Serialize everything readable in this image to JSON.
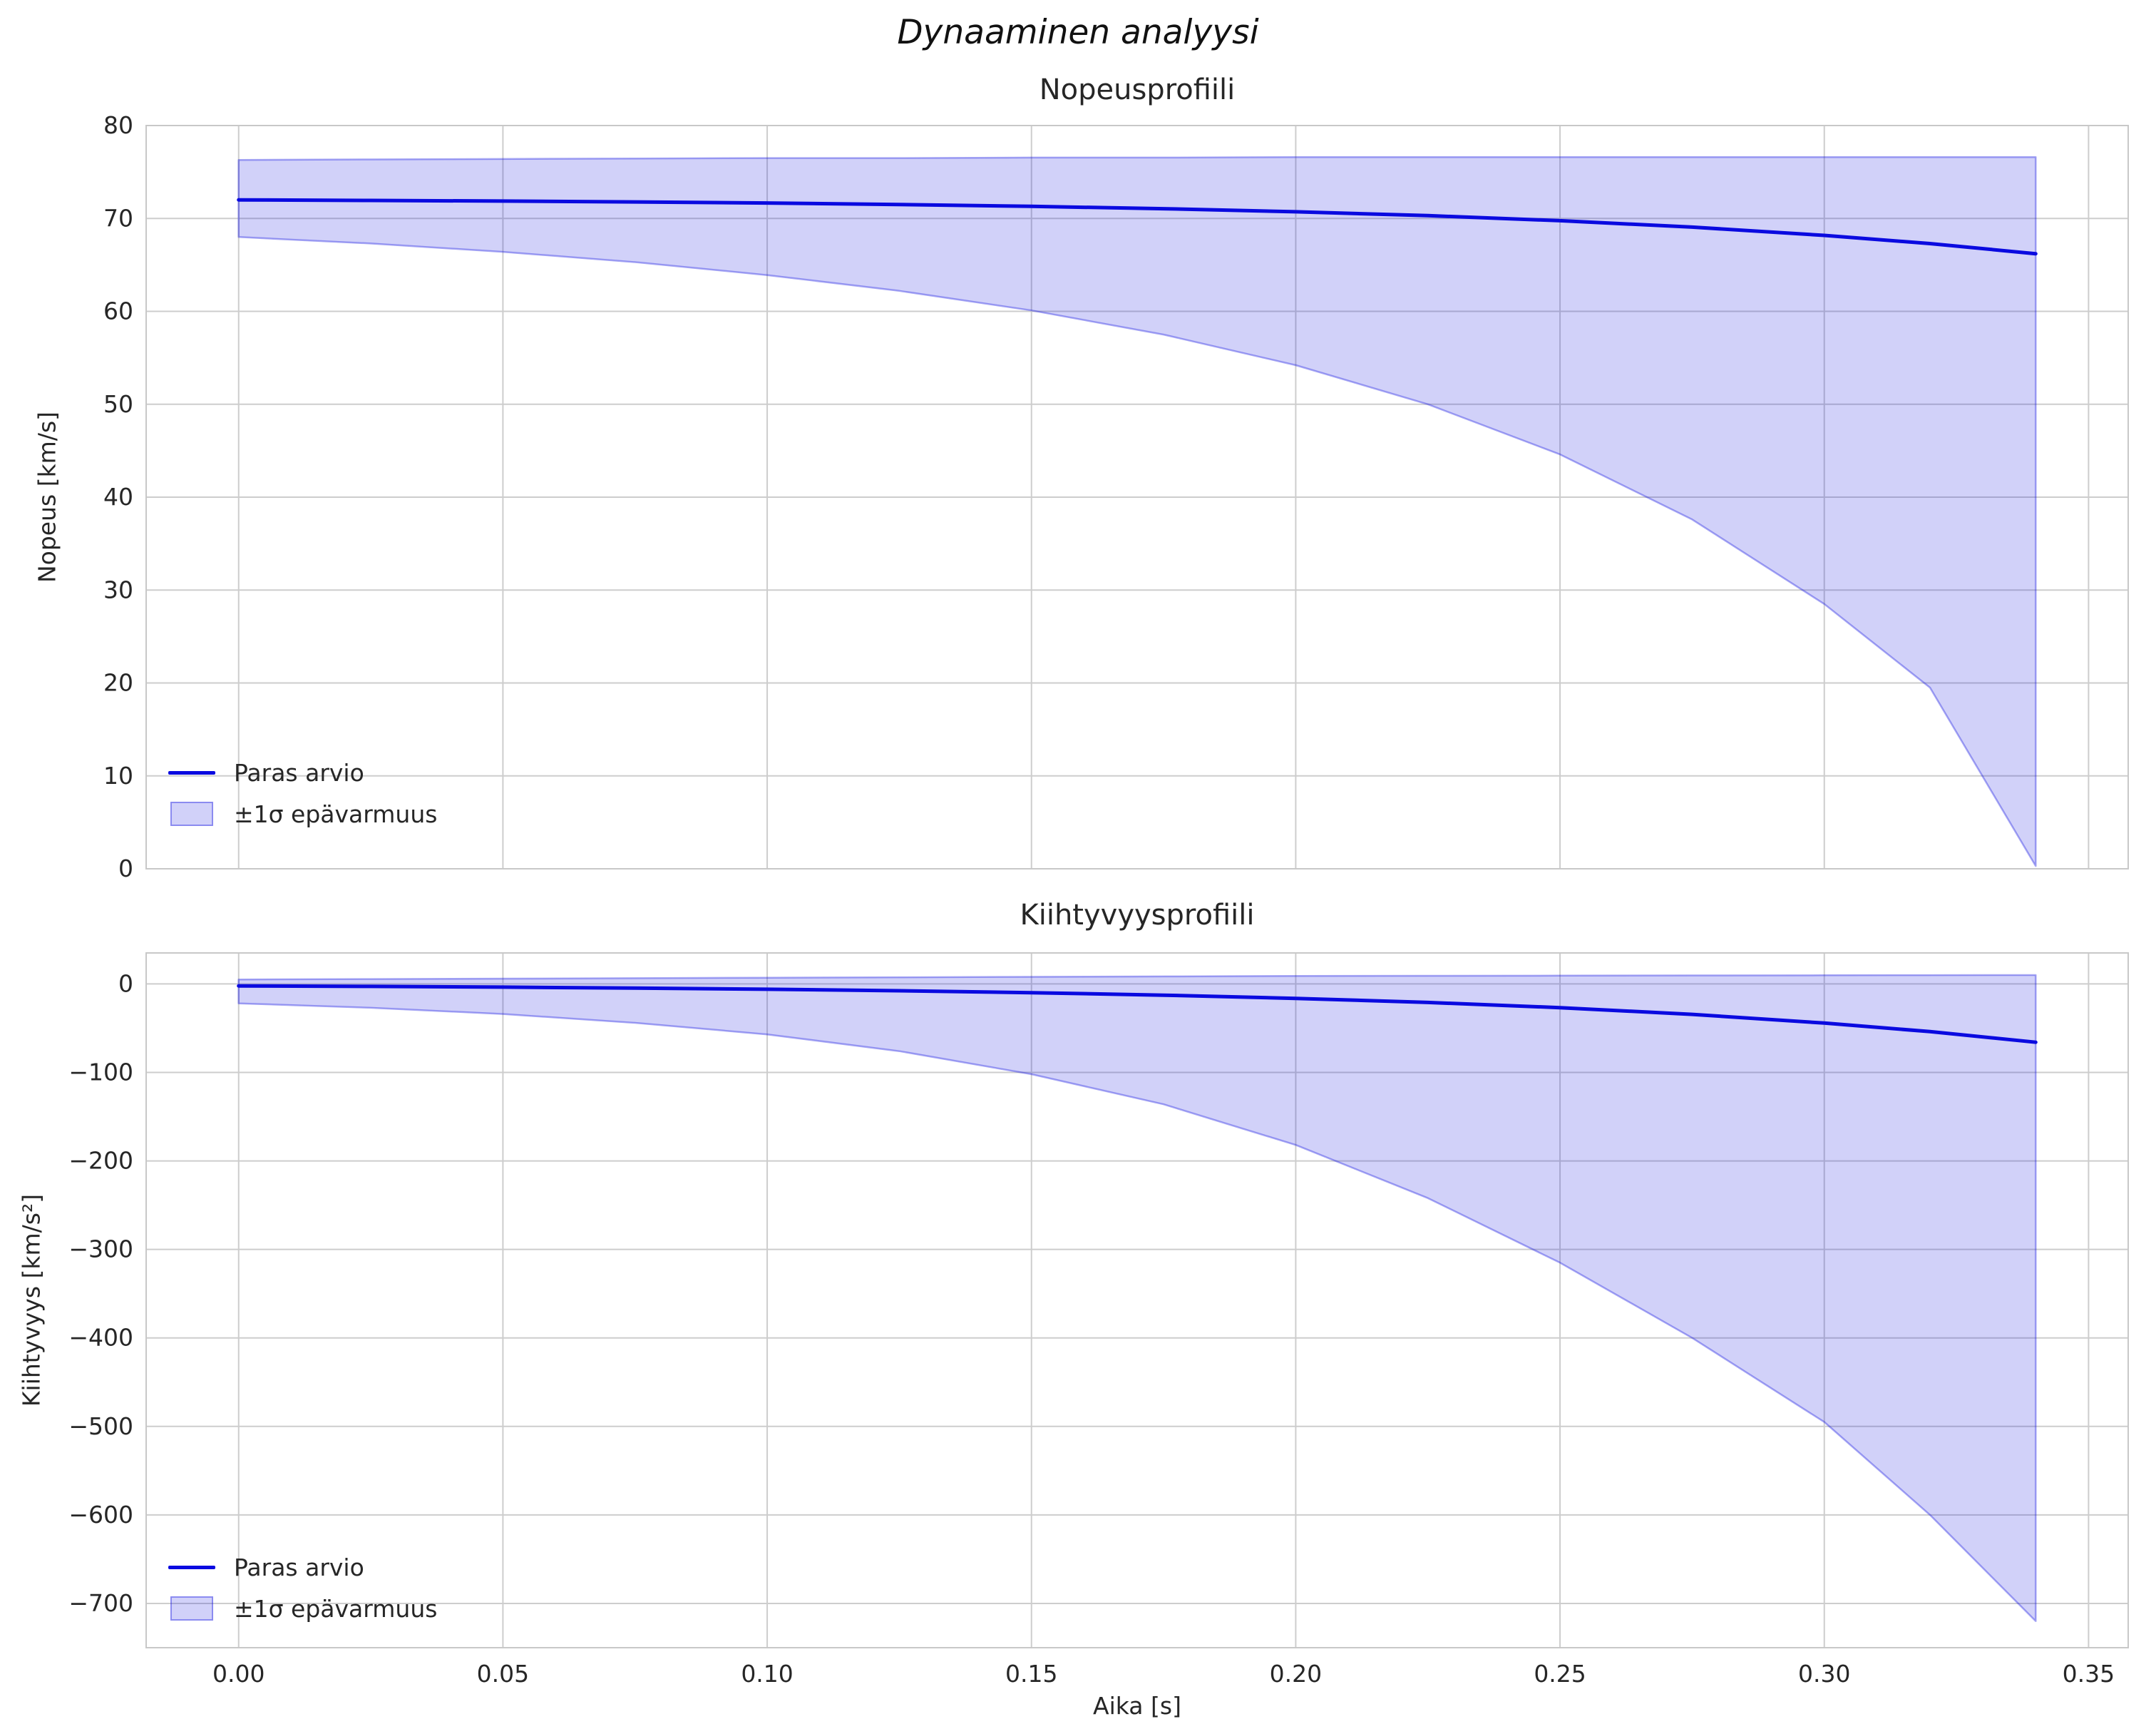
{
  "figure": {
    "suptitle": "Dynaaminen analyysi",
    "xlabel": "Aika [s]",
    "legend_line": "Paras arvio",
    "legend_band": "±1σ epävarmuus",
    "colors": {
      "line": "#0a0ae0",
      "band_fill": "rgba(10,10,224,0.19)",
      "band_edge": "rgba(10,10,224,0.35)",
      "grid": "#cdcdcd",
      "frame": "#c8c8c8",
      "text": "#262626"
    }
  },
  "chart_data": [
    {
      "type": "line",
      "title": "Nopeusprofiili",
      "ylabel": "Nopeus [km/s]",
      "xlabel": "",
      "legend": [
        "Paras arvio",
        "±1σ epävarmuus"
      ],
      "legend_position": "lower left",
      "grid": true,
      "xlim": [
        -0.0175,
        0.3575
      ],
      "ylim": [
        0,
        80
      ],
      "xticks": [
        0.0,
        0.05,
        0.1,
        0.15,
        0.2,
        0.25,
        0.3,
        0.35
      ],
      "yticks": [
        0,
        10,
        20,
        30,
        40,
        50,
        60,
        70,
        80
      ],
      "show_x_tick_labels": false,
      "x": [
        0,
        0.025,
        0.05,
        0.075,
        0.1,
        0.125,
        0.15,
        0.175,
        0.2,
        0.225,
        0.25,
        0.275,
        0.3,
        0.32,
        0.34
      ],
      "best": [
        72.0,
        71.94,
        71.87,
        71.78,
        71.66,
        71.5,
        71.3,
        71.05,
        70.72,
        70.3,
        69.76,
        69.07,
        68.18,
        67.29,
        66.2
      ],
      "upper": [
        76.3,
        76.35,
        76.4,
        76.45,
        76.5,
        76.5,
        76.55,
        76.55,
        76.6,
        76.6,
        76.6,
        76.6,
        76.6,
        76.6,
        76.6
      ],
      "lower": [
        68.0,
        67.3,
        66.4,
        65.3,
        63.9,
        62.2,
        60.1,
        57.5,
        54.2,
        50.0,
        44.6,
        37.6,
        28.5,
        19.5,
        0.3
      ]
    },
    {
      "type": "line",
      "title": "Kiihtyvyysprofiili",
      "ylabel": "Kiihtyvyys [km/s²]",
      "xlabel": "Aika [s]",
      "legend": [
        "Paras arvio",
        "±1σ epävarmuus"
      ],
      "legend_position": "lower left",
      "grid": true,
      "xlim": [
        -0.0175,
        0.3575
      ],
      "ylim": [
        -750,
        35
      ],
      "xticks": [
        0.0,
        0.05,
        0.1,
        0.15,
        0.2,
        0.25,
        0.3,
        0.35
      ],
      "yticks": [
        0,
        -100,
        -200,
        -300,
        -400,
        -500,
        -600,
        -700
      ],
      "show_x_tick_labels": true,
      "x": [
        0,
        0.025,
        0.05,
        0.075,
        0.1,
        0.125,
        0.15,
        0.175,
        0.2,
        0.225,
        0.25,
        0.275,
        0.3,
        0.32,
        0.34
      ],
      "best": [
        -2.2,
        -2.8,
        -3.6,
        -4.7,
        -6.0,
        -7.7,
        -9.9,
        -12.7,
        -16.3,
        -20.9,
        -26.8,
        -34.4,
        -44.2,
        -53.9,
        -65.9
      ],
      "upper": [
        5,
        5.5,
        6,
        6.5,
        7,
        7.5,
        8,
        8.5,
        9,
        9.2,
        9.4,
        9.6,
        9.8,
        9.9,
        10
      ],
      "lower": [
        -22,
        -27,
        -34,
        -44,
        -57,
        -76,
        -102,
        -136,
        -182,
        -242,
        -315,
        -400,
        -495,
        -600,
        -720
      ]
    }
  ]
}
